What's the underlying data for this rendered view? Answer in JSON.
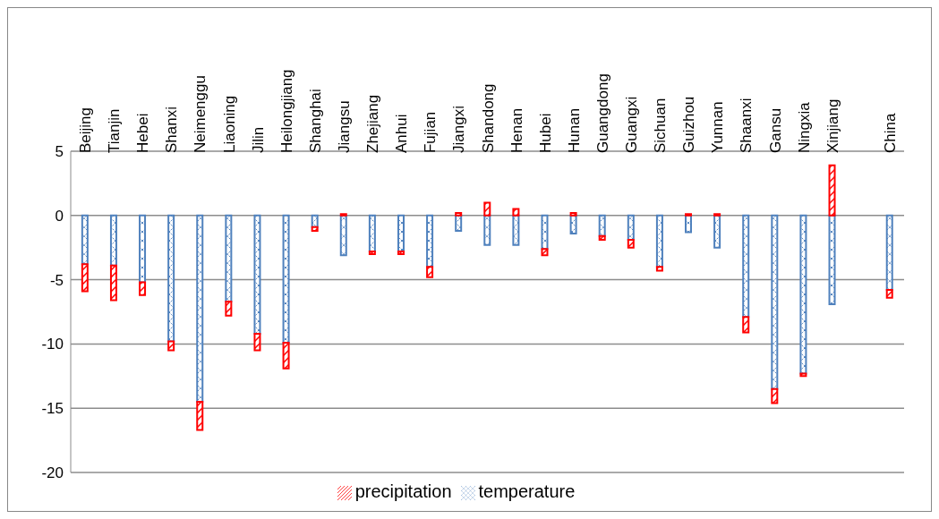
{
  "chart_data": {
    "type": "bar",
    "stacked": true,
    "categories": [
      "Beijing",
      "Tianjin",
      "Hebei",
      "Shanxi",
      "Neimenggu",
      "Liaoning",
      "Jilin",
      "Heilongjiang",
      "Shanghai",
      "Jiangsu",
      "Zhejiang",
      "Anhui",
      "Fujian",
      "Jiangxi",
      "Shandong",
      "Henan",
      "Hubei",
      "Hunan",
      "Guangdong",
      "Guangxi",
      "Sichuan",
      "Guizhou",
      "Yunnan",
      "Shaanxi",
      "Gansu",
      "Ningxia",
      "Xinjiang",
      null,
      "China"
    ],
    "series": [
      {
        "name": "temperature",
        "color": "#4f81bd",
        "values": [
          -3.8,
          -3.9,
          -5.2,
          -9.8,
          -14.5,
          -6.7,
          -9.2,
          -9.9,
          -0.9,
          -3.1,
          -2.8,
          -2.8,
          -4.0,
          -1.2,
          -2.3,
          -2.3,
          -2.6,
          -1.4,
          -1.6,
          -1.9,
          -4.0,
          -1.3,
          -2.5,
          -7.9,
          -13.5,
          -12.3,
          -6.9,
          null,
          -5.8
        ]
      },
      {
        "name": "precipitation",
        "color": "#ff0000",
        "values": [
          -2.1,
          -2.7,
          -1.0,
          -0.7,
          -2.2,
          -1.1,
          -1.3,
          -2.0,
          -0.3,
          0.1,
          -0.2,
          -0.2,
          -0.8,
          0.2,
          1.0,
          0.5,
          -0.5,
          0.2,
          -0.3,
          -0.6,
          -0.3,
          0.1,
          0.1,
          -1.2,
          -1.1,
          -0.2,
          3.9,
          null,
          -0.6
        ]
      }
    ],
    "ylim": [
      -20,
      5
    ],
    "yticks": [
      -20,
      -15,
      -10,
      -5,
      0,
      5
    ],
    "grid": "y",
    "legend": "bottom"
  }
}
